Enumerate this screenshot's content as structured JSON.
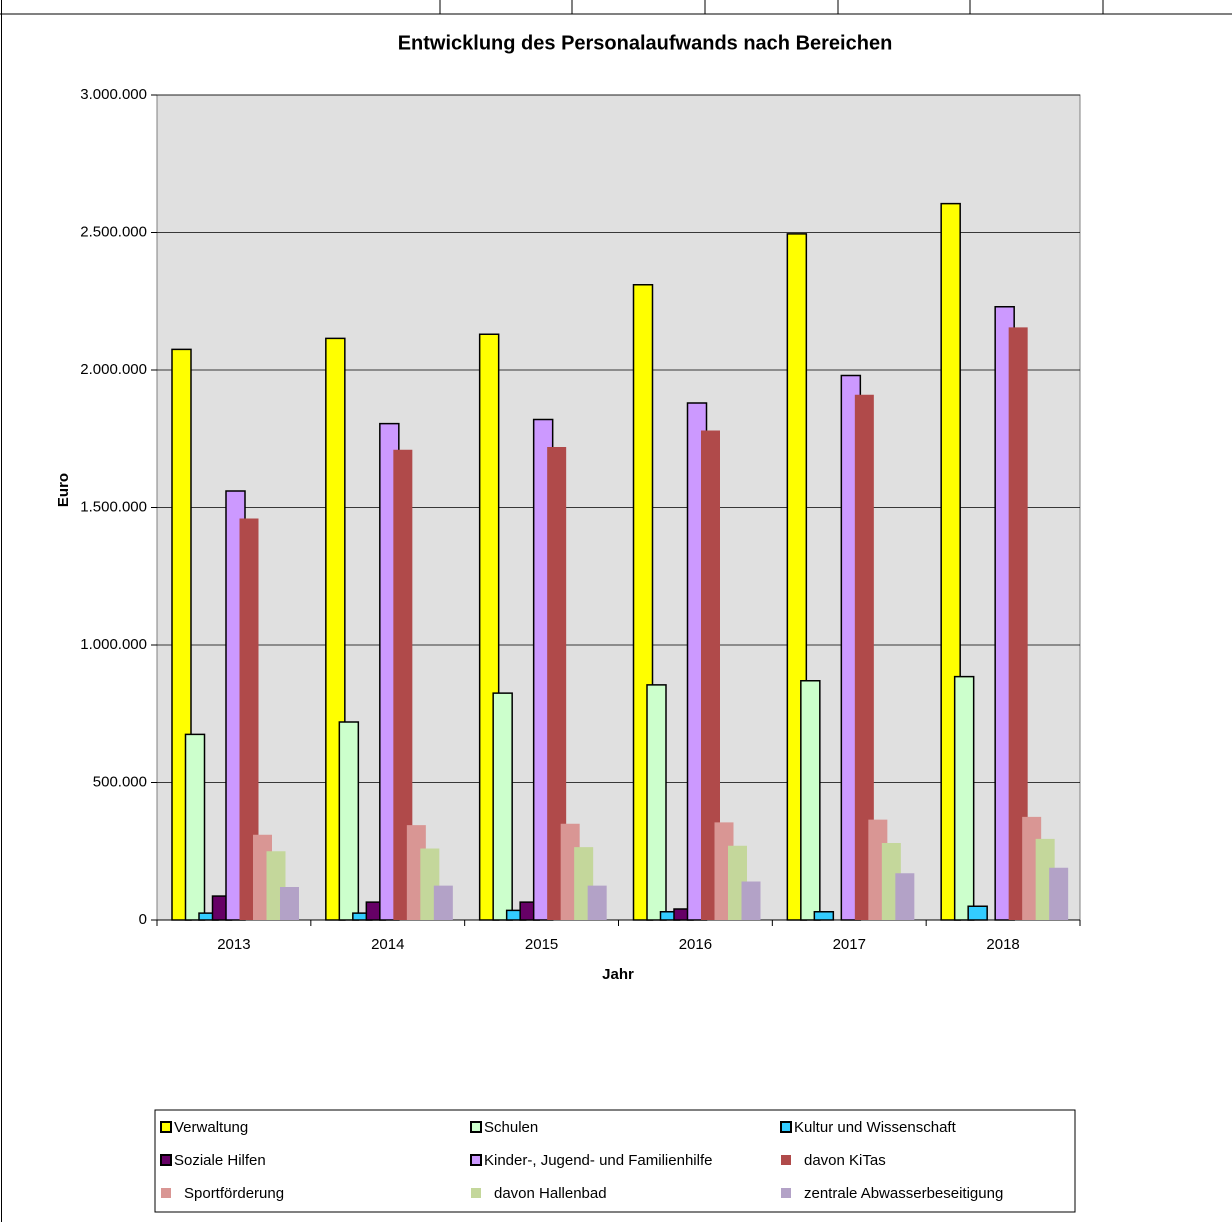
{
  "chart_data": {
    "type": "bar",
    "title": "Entwicklung des Personalaufwands nach Bereichen",
    "x_label": "Jahr",
    "y_label": "Euro",
    "categories": [
      "2013",
      "2014",
      "2015",
      "2016",
      "2017",
      "2018"
    ],
    "series": [
      {
        "name": "Verwaltung",
        "color": "#ffff00",
        "edgecolor": "#000000",
        "values": [
          2075000,
          2115000,
          2130000,
          2310000,
          2495000,
          2605000
        ]
      },
      {
        "name": "Schulen",
        "color": "#ccffcc",
        "edgecolor": "#000000",
        "values": [
          675000,
          720000,
          825000,
          855000,
          870000,
          885000
        ]
      },
      {
        "name": "Kultur und Wissenschaft",
        "color": "#33ccff",
        "edgecolor": "#000000",
        "values": [
          25000,
          25000,
          35000,
          30000,
          30000,
          50000
        ]
      },
      {
        "name": "Soziale Hilfen",
        "color": "#660066",
        "edgecolor": "#000000",
        "values": [
          87000,
          65000,
          65000,
          40000,
          0,
          0
        ]
      },
      {
        "name": "Kinder-, Jugend- und Familienhilfe",
        "color": "#cc99ff",
        "edgecolor": "#000000",
        "values": [
          1560000,
          1805000,
          1820000,
          1880000,
          1980000,
          2230000
        ]
      },
      {
        "name": "davon KiTas",
        "color": "#b04a4a",
        "values": [
          1460000,
          1710000,
          1720000,
          1780000,
          1910000,
          2155000
        ]
      },
      {
        "name": "Sportförderung",
        "color": "#d99694",
        "values": [
          310000,
          345000,
          350000,
          355000,
          365000,
          375000
        ]
      },
      {
        "name": "davon Hallenbad",
        "color": "#c4d79b",
        "values": [
          250000,
          260000,
          265000,
          270000,
          280000,
          295000
        ]
      },
      {
        "name": "zentrale Abwasserbeseitigung",
        "color": "#b3a2c7",
        "values": [
          120000,
          125000,
          125000,
          140000,
          170000,
          190000
        ]
      }
    ],
    "ylim": [
      0,
      3000000
    ],
    "yticks": [
      0,
      {
        "value": 500000,
        "label": "500.000"
      },
      {
        "value": 1000000,
        "label": "1.000.000"
      },
      {
        "value": 1500000,
        "label": "1.500.000"
      },
      {
        "value": 2000000,
        "label": "2.000.000"
      },
      {
        "value": 2500000,
        "label": "2.500.000"
      },
      {
        "value": 3000000,
        "label": "3.000.000"
      }
    ],
    "grid": true,
    "legend": "bottom"
  }
}
